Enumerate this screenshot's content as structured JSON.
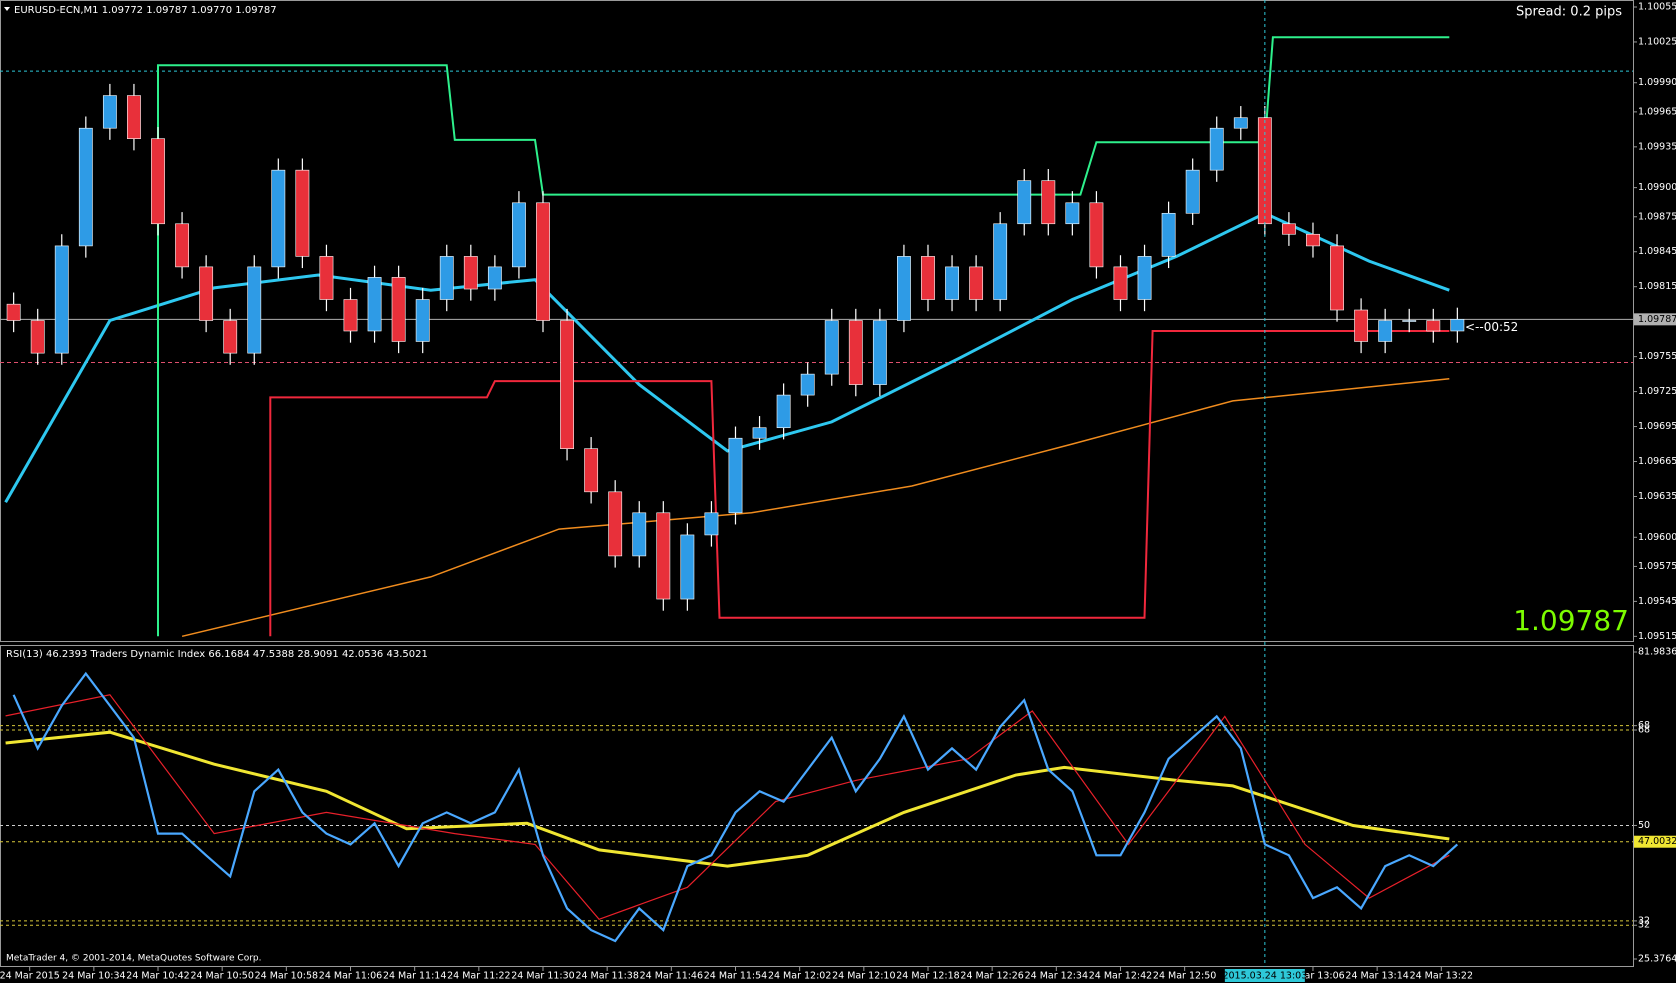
{
  "window_title": "EURUSD-ECN,M1  1.09772 1.09787 1.09770 1.09787",
  "spread": "Spread: 0.2 pips",
  "countdown": "<--00:52",
  "copyright": "MetaTrader 4, © 2001-2014, MetaQuotes Software Corp.",
  "chart_data": [
    {
      "type": "candlestick",
      "xlim": [
        622.3,
        825.9
      ],
      "xticks": [
        {
          "value": 626,
          "label": "24 Mar 2015"
        },
        {
          "value": 634,
          "label": "24 Mar 10:34"
        },
        {
          "value": 642,
          "label": "24 Mar 10:42"
        },
        {
          "value": 650,
          "label": "24 Mar 10:50"
        },
        {
          "value": 658,
          "label": "24 Mar 10:58"
        },
        {
          "value": 666,
          "label": "24 Mar 11:06"
        },
        {
          "value": 674,
          "label": "24 Mar 11:14"
        },
        {
          "value": 682,
          "label": "24 Mar 11:22"
        },
        {
          "value": 690,
          "label": "24 Mar 11:30"
        },
        {
          "value": 698,
          "label": "24 Mar 11:38"
        },
        {
          "value": 706,
          "label": "24 Mar 11:46"
        },
        {
          "value": 714,
          "label": "24 Mar 11:54"
        },
        {
          "value": 722,
          "label": "24 Mar 12:02"
        },
        {
          "value": 730,
          "label": "24 Mar 12:10"
        },
        {
          "value": 738,
          "label": "24 Mar 12:18"
        },
        {
          "value": 746,
          "label": "24 Mar 12:26"
        },
        {
          "value": 754,
          "label": "24 Mar 12:34"
        },
        {
          "value": 762,
          "label": "24 Mar 12:42"
        },
        {
          "value": 770,
          "label": "24 Mar 12:50"
        },
        {
          "value": 786,
          "label": "24 Mar 13:06"
        },
        {
          "value": 794,
          "label": "24 Mar 13:14"
        },
        {
          "value": 802,
          "label": "24 Mar 13:22"
        }
      ],
      "ylim": [
        1.09511,
        1.10061
      ],
      "yticks": [
        1.10055,
        1.10025,
        {
          "value": 1.0999,
          "label": "1.09990"
        },
        1.09965,
        1.09935,
        {
          "value": 1.099,
          "label": "1.09900"
        },
        1.09875,
        1.09845,
        1.09815,
        1.09755,
        1.09725,
        1.09695,
        1.09665,
        1.09635,
        {
          "value": 1.096,
          "label": "1.09600"
        },
        1.09575,
        1.09545,
        1.09515
      ],
      "bull_color": "#2e9be6",
      "bear_color": "#e8303a",
      "wick_color": "#ffffff",
      "x": [
        624,
        627,
        630,
        633,
        636,
        639,
        642,
        645,
        648,
        651,
        654,
        657,
        660,
        663,
        666,
        669,
        672,
        675,
        678,
        681,
        684,
        687,
        690,
        693,
        696,
        699,
        702,
        705,
        708,
        711,
        714,
        717,
        720,
        723,
        726,
        729,
        732,
        735,
        738,
        741,
        744,
        747,
        750,
        753,
        756,
        759,
        762,
        765,
        768,
        771,
        774,
        777,
        780,
        783,
        786,
        789,
        792,
        795,
        798,
        801,
        804
      ],
      "open": [
        1.098,
        1.09786,
        1.09758,
        1.0985,
        1.09951,
        1.09979,
        1.09942,
        1.09869,
        1.09832,
        1.09786,
        1.09758,
        1.09832,
        1.09915,
        1.09841,
        1.09804,
        1.09777,
        1.09823,
        1.09768,
        1.09804,
        1.09841,
        1.09813,
        1.09832,
        1.09887,
        1.09786,
        1.09676,
        1.09639,
        1.09584,
        1.09621,
        1.09547,
        1.09602,
        1.09621,
        1.09685,
        1.09694,
        1.09722,
        1.0974,
        1.09786,
        1.09731,
        1.09786,
        1.09841,
        1.09804,
        1.09832,
        1.09804,
        1.09869,
        1.09906,
        1.09869,
        1.09887,
        1.09832,
        1.09804,
        1.09841,
        1.09878,
        1.09915,
        1.09951,
        1.0996,
        1.09869,
        1.0986,
        1.0985,
        1.09795,
        1.09768,
        1.09786,
        1.09786,
        1.09777
      ],
      "high": [
        1.0981,
        1.09796,
        1.0986,
        1.09961,
        1.09989,
        1.09989,
        1.09952,
        1.09879,
        1.09842,
        1.09796,
        1.09842,
        1.09925,
        1.09925,
        1.09851,
        1.09814,
        1.09833,
        1.09833,
        1.09814,
        1.09851,
        1.09851,
        1.09842,
        1.09897,
        1.09897,
        1.09796,
        1.09686,
        1.09649,
        1.09631,
        1.09631,
        1.09612,
        1.09631,
        1.09695,
        1.09704,
        1.09732,
        1.0975,
        1.09796,
        1.09796,
        1.09796,
        1.09851,
        1.09851,
        1.09842,
        1.09842,
        1.09879,
        1.09916,
        1.09916,
        1.09897,
        1.09897,
        1.09842,
        1.09851,
        1.09888,
        1.09925,
        1.09961,
        1.0997,
        1.0997,
        1.09879,
        1.0987,
        1.0986,
        1.09805,
        1.09796,
        1.09796,
        1.09796,
        1.09797
      ],
      "low": [
        1.09776,
        1.09748,
        1.09748,
        1.0984,
        1.09941,
        1.09932,
        1.09859,
        1.09822,
        1.09776,
        1.09748,
        1.09748,
        1.09822,
        1.09831,
        1.09794,
        1.09767,
        1.09767,
        1.09758,
        1.09758,
        1.09794,
        1.09803,
        1.09803,
        1.09822,
        1.09776,
        1.09666,
        1.09629,
        1.09574,
        1.09574,
        1.09537,
        1.09537,
        1.09592,
        1.09611,
        1.09675,
        1.09684,
        1.09712,
        1.0973,
        1.09721,
        1.09721,
        1.09776,
        1.09794,
        1.09794,
        1.09794,
        1.09794,
        1.09859,
        1.09859,
        1.09859,
        1.09822,
        1.09794,
        1.09794,
        1.09831,
        1.09868,
        1.09905,
        1.09941,
        1.09859,
        1.0985,
        1.0984,
        1.09785,
        1.09758,
        1.09758,
        1.09776,
        1.09767,
        1.09767
      ],
      "close": [
        1.09786,
        1.09758,
        1.0985,
        1.09951,
        1.09979,
        1.09942,
        1.09869,
        1.09832,
        1.09786,
        1.09758,
        1.09832,
        1.09915,
        1.09841,
        1.09804,
        1.09777,
        1.09823,
        1.09768,
        1.09804,
        1.09841,
        1.09813,
        1.09832,
        1.09887,
        1.09786,
        1.09676,
        1.09639,
        1.09584,
        1.09621,
        1.09547,
        1.09602,
        1.09621,
        1.09685,
        1.09694,
        1.09722,
        1.0974,
        1.09786,
        1.09731,
        1.09786,
        1.09841,
        1.09804,
        1.09832,
        1.09804,
        1.09869,
        1.09906,
        1.09869,
        1.09887,
        1.09832,
        1.09804,
        1.09841,
        1.09878,
        1.09915,
        1.09951,
        1.0996,
        1.09869,
        1.0986,
        1.0985,
        1.09795,
        1.09768,
        1.09786,
        1.09786,
        1.09777,
        1.09787
      ],
      "current_price": 1.09787,
      "overlays": [
        {
          "color": "#2ec8f0",
          "width": 3,
          "x": [
            623,
            636,
            649,
            662,
            676,
            689,
            702,
            713,
            726,
            742,
            756,
            769,
            780,
            793,
            803
          ],
          "values": [
            1.0963,
            1.09786,
            1.09814,
            1.09825,
            1.09812,
            1.09821,
            1.09731,
            1.09674,
            1.09699,
            1.09754,
            1.09804,
            1.09841,
            1.09878,
            1.09837,
            1.09812
          ]
        },
        {
          "color": "#f08c1e",
          "width": 1.5,
          "x": [
            645,
            676,
            692,
            716,
            736,
            756,
            776,
            803
          ],
          "values": [
            1.09515,
            1.09566,
            1.09607,
            1.09621,
            1.09644,
            1.0968,
            1.09717,
            1.09736
          ]
        },
        {
          "color": "#2ef08c",
          "width": 2,
          "x": [
            642,
            642,
            678,
            679,
            689,
            690,
            757,
            759,
            780,
            781,
            803
          ],
          "values": [
            1.09515,
            1.10005,
            1.10005,
            1.09941,
            1.09941,
            1.09894,
            1.09894,
            1.09939,
            1.09939,
            1.10029,
            1.10029
          ]
        },
        {
          "color": "#f0283c",
          "width": 2,
          "x": [
            656,
            656,
            683,
            684,
            711,
            712,
            765,
            766,
            803
          ],
          "values": [
            1.09515,
            1.0972,
            1.0972,
            1.09734,
            1.09734,
            1.09531,
            1.09531,
            1.09777,
            1.09777
          ]
        }
      ],
      "levels": [
        {
          "value": 1.0975,
          "color": "#e0506e"
        }
      ],
      "crosshair": {
        "x": 780,
        "y": 1.1,
        "label": "2015.03.24 13:03"
      }
    },
    {
      "type": "line",
      "title": "RSI(13) 46.2393  Traders Dynamic Index 66.1684 47.5388 28.9091 42.0536 43.5021",
      "ylim": [
        25.3764,
        81.9836
      ],
      "yticks": [
        81.9836,
        {
          "value": 68.4,
          "label": "68"
        },
        {
          "value": 67.6,
          "label": "68"
        },
        50,
        {
          "value": 32.4,
          "label": "32"
        },
        {
          "value": 31.6,
          "label": "32"
        },
        25.3764
      ],
      "marker_value": 47.0032,
      "series": [
        {
          "color": "#f0e632",
          "width": 3,
          "x": [
            623,
            636,
            649,
            663,
            673,
            688,
            697,
            713,
            723,
            735,
            749,
            755,
            769,
            776,
            791,
            803
          ],
          "values": [
            65.2,
            67.2,
            61.3,
            56.3,
            49.4,
            50.4,
            45.5,
            42.5,
            44.5,
            52.4,
            59.3,
            60.7,
            58.3,
            57.3,
            50.0,
            47.5
          ]
        },
        {
          "color": "#e8202a",
          "width": 1.2,
          "x": [
            623,
            636,
            649,
            663,
            679,
            689,
            697,
            708,
            719,
            729,
            743,
            751,
            763,
            775,
            785,
            793,
            803
          ],
          "values": [
            70.2,
            74.1,
            48.5,
            52.4,
            48.5,
            46.5,
            32.7,
            38.6,
            54.4,
            58.3,
            62.3,
            71.1,
            46.5,
            70.1,
            46.5,
            36.6,
            44.5
          ]
        },
        {
          "color": "#4aa8ff",
          "width": 2.2,
          "x": [
            624,
            627,
            630,
            633,
            636,
            639,
            642,
            645,
            648,
            651,
            654,
            657,
            660,
            663,
            666,
            669,
            672,
            675,
            678,
            681,
            684,
            687,
            690,
            693,
            696,
            699,
            702,
            705,
            708,
            711,
            714,
            717,
            720,
            723,
            726,
            729,
            732,
            735,
            738,
            741,
            744,
            747,
            750,
            753,
            756,
            759,
            762,
            765,
            768,
            771,
            774,
            777,
            780,
            783,
            786,
            789,
            792,
            795,
            798,
            801,
            804
          ],
          "values": [
            74.1,
            64.2,
            72.1,
            78.0,
            72.1,
            66.2,
            48.5,
            48.5,
            44.5,
            40.6,
            56.3,
            60.3,
            52.4,
            48.5,
            46.5,
            50.4,
            42.5,
            50.4,
            52.4,
            50.4,
            52.4,
            60.3,
            44.5,
            34.7,
            30.7,
            28.7,
            34.7,
            30.7,
            42.5,
            44.5,
            52.4,
            56.3,
            54.4,
            60.3,
            66.2,
            56.3,
            62.3,
            70.1,
            60.3,
            64.2,
            60.3,
            68.2,
            73.1,
            60.3,
            56.3,
            44.5,
            44.5,
            52.4,
            62.3,
            66.2,
            70.1,
            64.2,
            46.5,
            44.5,
            36.6,
            38.6,
            34.7,
            42.5,
            44.5,
            42.5,
            46.5
          ]
        }
      ]
    }
  ]
}
